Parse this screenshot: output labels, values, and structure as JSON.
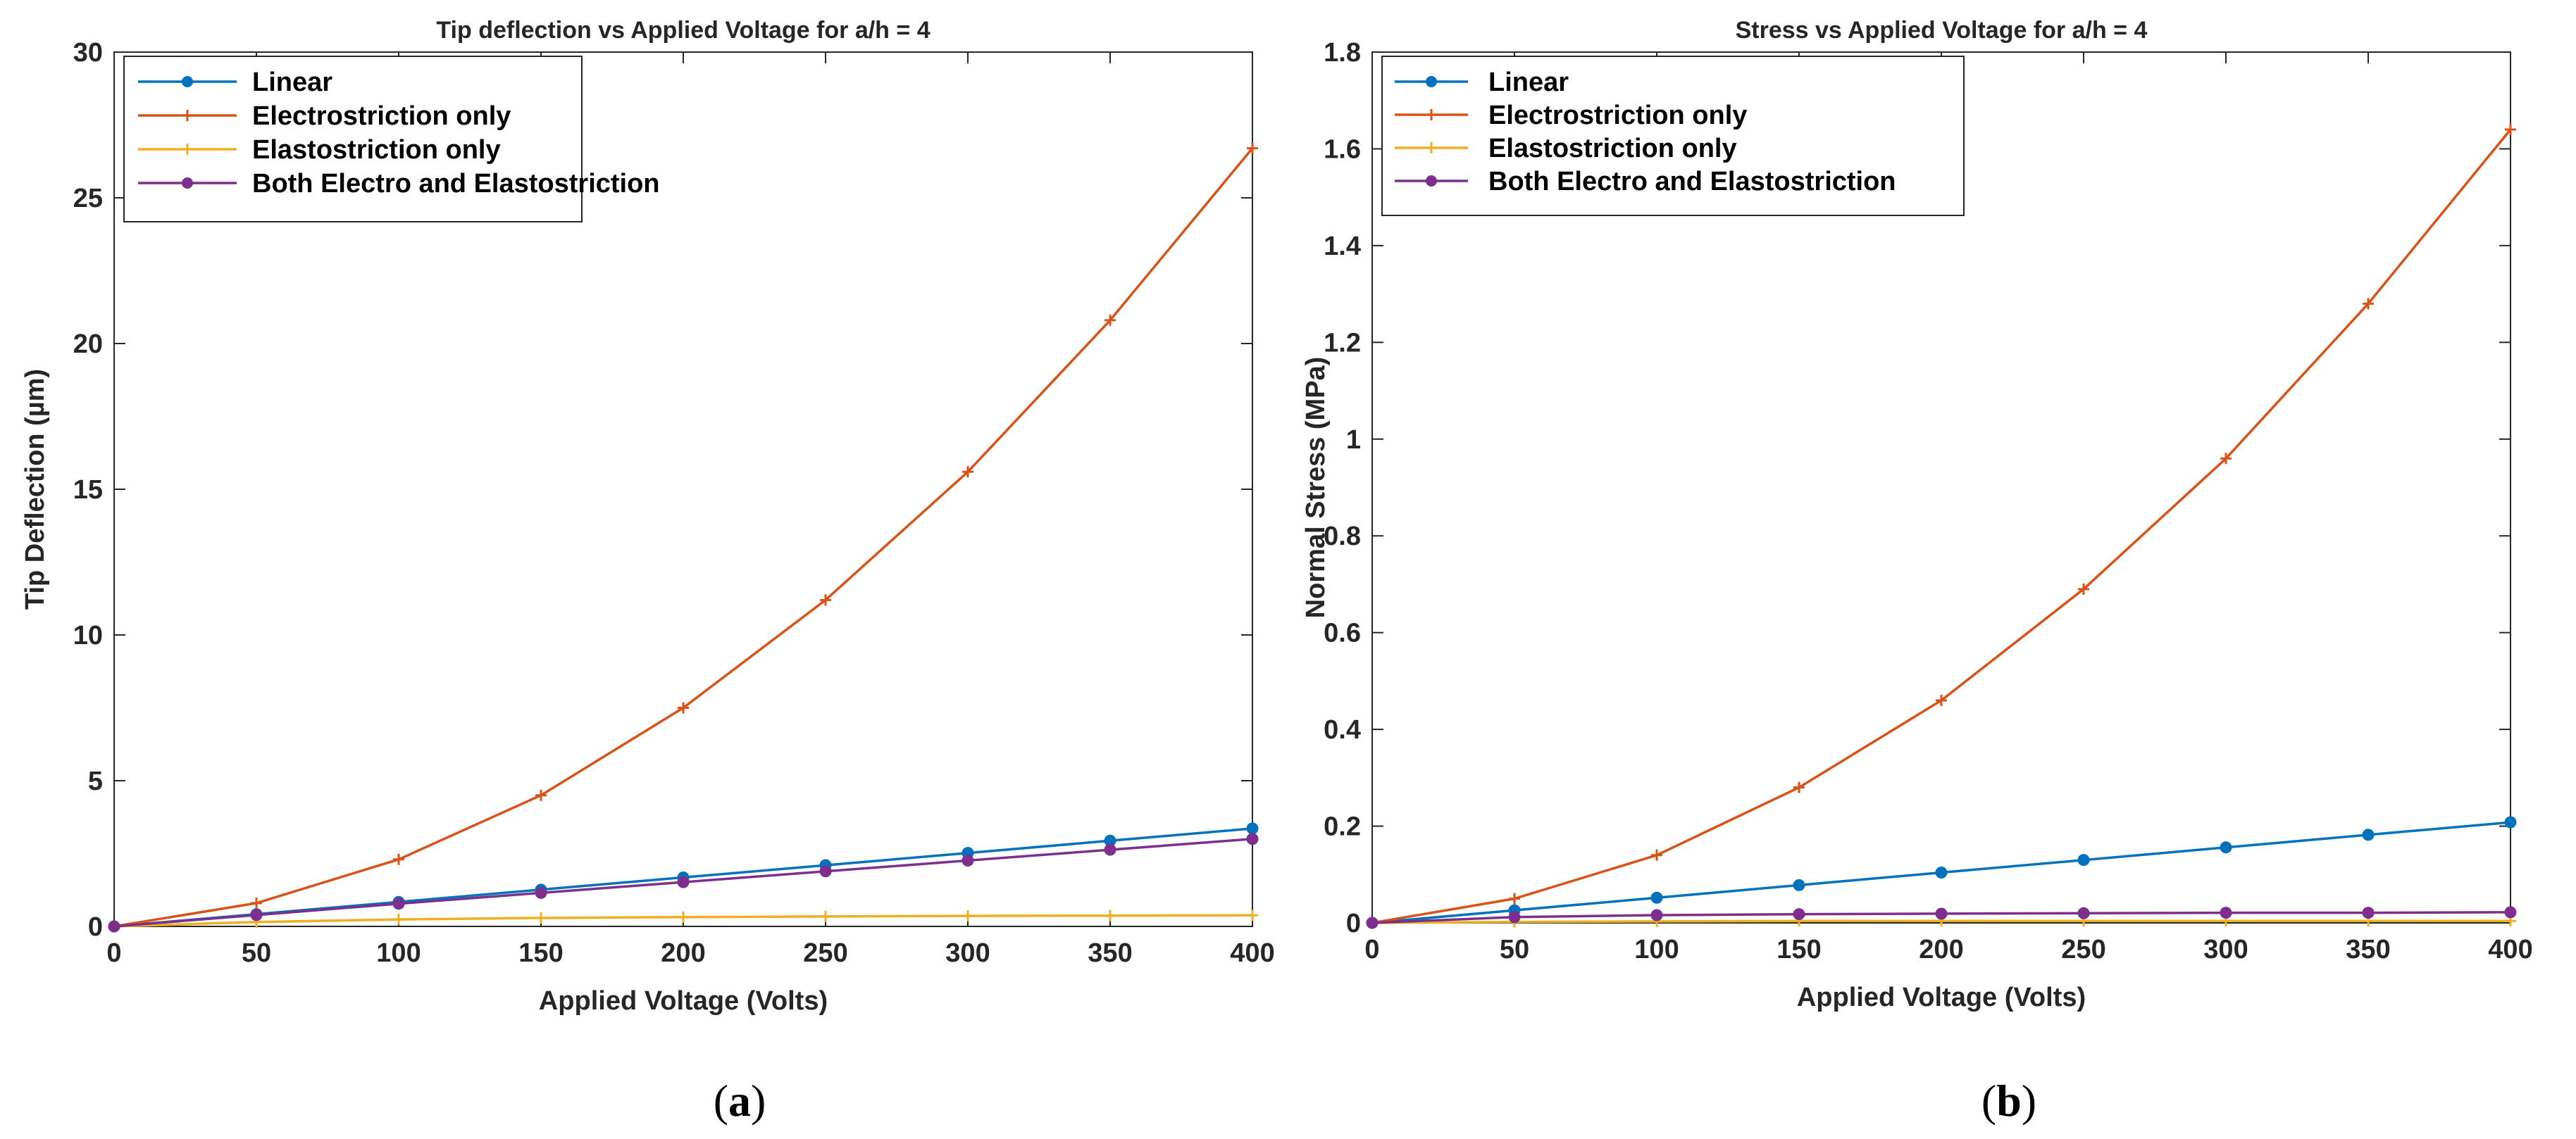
{
  "chart_data": [
    {
      "type": "line",
      "panel_label_open": "(",
      "panel_label_letter": "a",
      "panel_label_close": ")",
      "title": "Tip deflection vs Applied Voltage for a/h = 4",
      "xlabel": "Applied Voltage (Volts)",
      "ylabel": "Tip Deflection (µm)",
      "xlim": [
        0,
        400
      ],
      "ylim": [
        0,
        30
      ],
      "xticks": [
        0,
        50,
        100,
        150,
        200,
        250,
        300,
        350,
        400
      ],
      "yticks": [
        0,
        5,
        10,
        15,
        20,
        25,
        30
      ],
      "grid": false,
      "legend_position": "top-left",
      "x": [
        0,
        50,
        100,
        150,
        200,
        250,
        300,
        350,
        400
      ],
      "series": [
        {
          "name": "Linear",
          "color": "#0072BD",
          "marker": "dot",
          "values": [
            0,
            0.42,
            0.84,
            1.26,
            1.68,
            2.1,
            2.52,
            2.94,
            3.36
          ]
        },
        {
          "name": "Electrostriction only",
          "color": "#D95319",
          "marker": "plus",
          "values": [
            0,
            0.8,
            2.3,
            4.5,
            7.5,
            11.2,
            15.6,
            20.8,
            26.7
          ]
        },
        {
          "name": "Elastostriction only",
          "color": "#EDB120",
          "marker": "plus",
          "values": [
            0,
            0.15,
            0.24,
            0.29,
            0.32,
            0.34,
            0.36,
            0.37,
            0.38
          ]
        },
        {
          "name": "Both Electro and Elastostriction",
          "color": "#7E2F8E",
          "marker": "dot",
          "values": [
            0,
            0.39,
            0.78,
            1.15,
            1.52,
            1.89,
            2.26,
            2.63,
            3.0
          ]
        }
      ]
    },
    {
      "type": "line",
      "panel_label_open": "(",
      "panel_label_letter": "b",
      "panel_label_close": ")",
      "title": "Stress vs Applied Voltage for a/h = 4",
      "xlabel": "Applied Voltage (Volts)",
      "ylabel": "Normal Stress (MPa)",
      "xlim": [
        0,
        400
      ],
      "ylim": [
        0,
        1.8
      ],
      "xticks": [
        0,
        50,
        100,
        150,
        200,
        250,
        300,
        350,
        400
      ],
      "yticks": [
        0,
        0.2,
        0.4,
        0.6,
        0.8,
        1,
        1.2,
        1.4,
        1.6,
        1.8
      ],
      "grid": false,
      "legend_position": "top-left",
      "x": [
        0,
        50,
        100,
        150,
        200,
        250,
        300,
        350,
        400
      ],
      "series": [
        {
          "name": "Linear",
          "color": "#0072BD",
          "marker": "dot",
          "values": [
            0,
            0.026,
            0.052,
            0.078,
            0.104,
            0.13,
            0.156,
            0.182,
            0.208
          ]
        },
        {
          "name": "Electrostriction only",
          "color": "#D95319",
          "marker": "plus",
          "values": [
            0,
            0.05,
            0.14,
            0.28,
            0.46,
            0.69,
            0.96,
            1.28,
            1.64
          ]
        },
        {
          "name": "Elastostriction only",
          "color": "#EDB120",
          "marker": "plus",
          "values": [
            0,
            0.002,
            0.003,
            0.004,
            0.004,
            0.004,
            0.004,
            0.004,
            0.004
          ]
        },
        {
          "name": "Both Electro and Elastostriction",
          "color": "#7E2F8E",
          "marker": "dot",
          "values": [
            0,
            0.012,
            0.016,
            0.018,
            0.019,
            0.02,
            0.021,
            0.021,
            0.022
          ]
        }
      ]
    }
  ]
}
